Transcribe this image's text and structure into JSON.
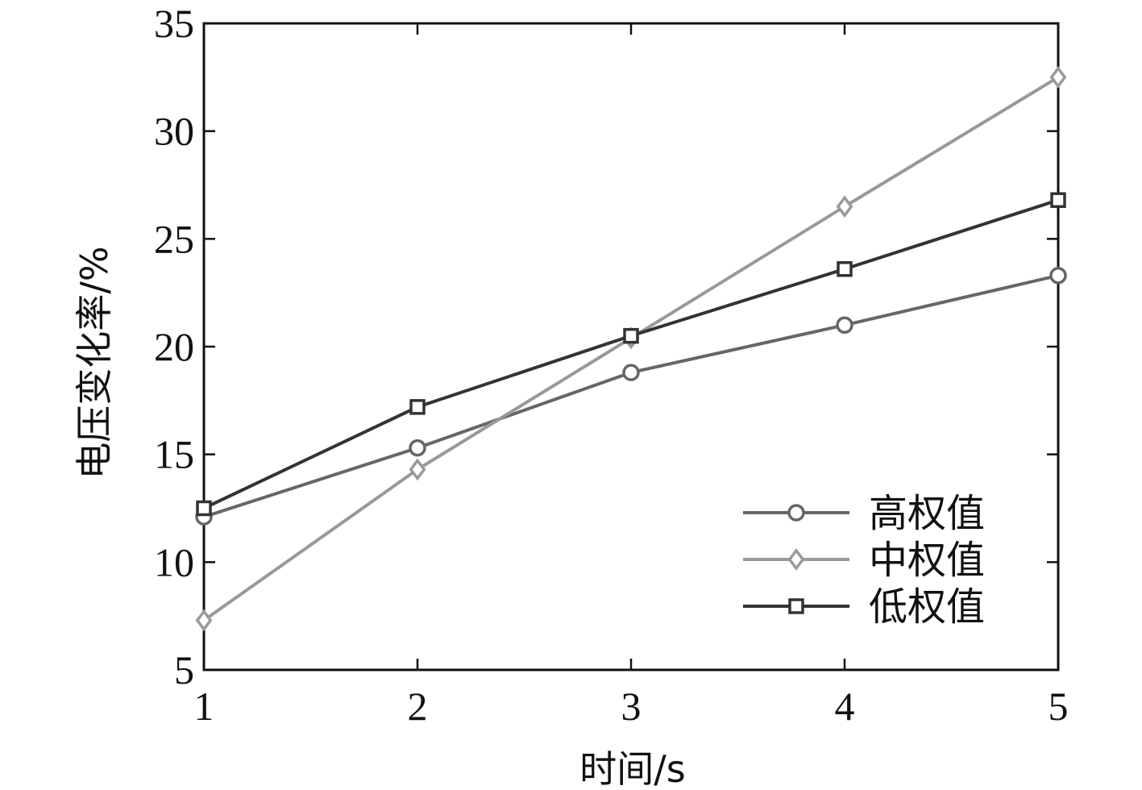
{
  "chart_data": {
    "type": "line",
    "title": "",
    "xlabel": "时间/s",
    "ylabel": "电压变化率/%",
    "x": [
      1,
      2,
      3,
      4,
      5
    ],
    "xlim": [
      1,
      5
    ],
    "ylim": [
      5,
      35
    ],
    "xticks": [
      "1",
      "2",
      "3",
      "4",
      "5"
    ],
    "yticks": [
      "5",
      "10",
      "15",
      "20",
      "25",
      "30",
      "35"
    ],
    "grid": false,
    "legend_position": "bottom-right",
    "series": [
      {
        "name": "高权值",
        "values": [
          12.1,
          15.3,
          18.8,
          21.0,
          23.3
        ],
        "marker": "circle",
        "color": "#666666"
      },
      {
        "name": "中权值",
        "values": [
          7.3,
          14.3,
          20.4,
          26.5,
          32.5
        ],
        "marker": "diamond",
        "color": "#999999"
      },
      {
        "name": "低权值",
        "values": [
          12.5,
          17.2,
          20.5,
          23.6,
          26.8
        ],
        "marker": "square",
        "color": "#333333"
      }
    ]
  }
}
